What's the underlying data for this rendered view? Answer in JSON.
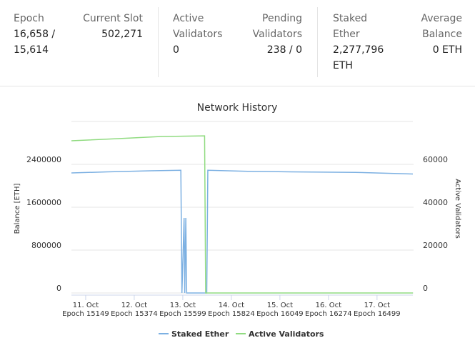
{
  "stats": [
    {
      "label": "Epoch",
      "value": "16,658 / 15,614"
    },
    {
      "label": "Current Slot",
      "value": "502,271"
    },
    {
      "label": "Active Validators",
      "value": "0"
    },
    {
      "label": "Pending Validators",
      "value": "238 / 0"
    },
    {
      "label": "Staked Ether",
      "value": "2,277,796 ETH"
    },
    {
      "label": "Average Balance",
      "value": "0 ETH"
    }
  ],
  "chart_data": {
    "type": "line",
    "title": "Network History",
    "y_label": "Balance [ETH]",
    "y2_label": "Active Validators",
    "xlim": [
      15083,
      16665
    ],
    "xticks": [
      {
        "value": 15149,
        "label": [
          "11. Oct",
          "Epoch 15149"
        ]
      },
      {
        "value": 15374,
        "label": [
          "12. Oct",
          "Epoch 15374"
        ]
      },
      {
        "value": 15599,
        "label": [
          "13. Oct",
          "Epoch 15599"
        ]
      },
      {
        "value": 15824,
        "label": [
          "14. Oct",
          "Epoch 15824"
        ]
      },
      {
        "value": 16049,
        "label": [
          "15. Oct",
          "Epoch 16049"
        ]
      },
      {
        "value": 16274,
        "label": [
          "16. Oct",
          "Epoch 16274"
        ]
      },
      {
        "value": 16499,
        "label": [
          "17. Oct",
          "Epoch 16499"
        ]
      }
    ],
    "ylim": [
      0,
      3200000
    ],
    "yticks": [
      0,
      800000,
      1600000,
      2400000
    ],
    "y2lim": [
      0,
      80000
    ],
    "y2ticks": [
      0,
      20000,
      40000,
      60000
    ],
    "grid": true,
    "legend": "bottom",
    "series": [
      {
        "name": "Staked Ether",
        "color": "#7cb0e2",
        "x": [
          15083,
          15250,
          15450,
          15590,
          15595,
          15605,
          15608,
          15613,
          15617,
          15710,
          15715,
          15900,
          16100,
          16400,
          16665
        ],
        "values": [
          2240000,
          2260000,
          2280000,
          2290000,
          0,
          1400000,
          0,
          1400000,
          0,
          0,
          2290000,
          2270000,
          2260000,
          2250000,
          2220000
        ]
      },
      {
        "name": "Active Validators",
        "color": "#90db80",
        "axis": "y2",
        "x": [
          15083,
          15300,
          15500,
          15700,
          15705,
          16665
        ],
        "values": [
          71000,
          72000,
          73000,
          73300,
          0,
          0
        ]
      }
    ]
  }
}
